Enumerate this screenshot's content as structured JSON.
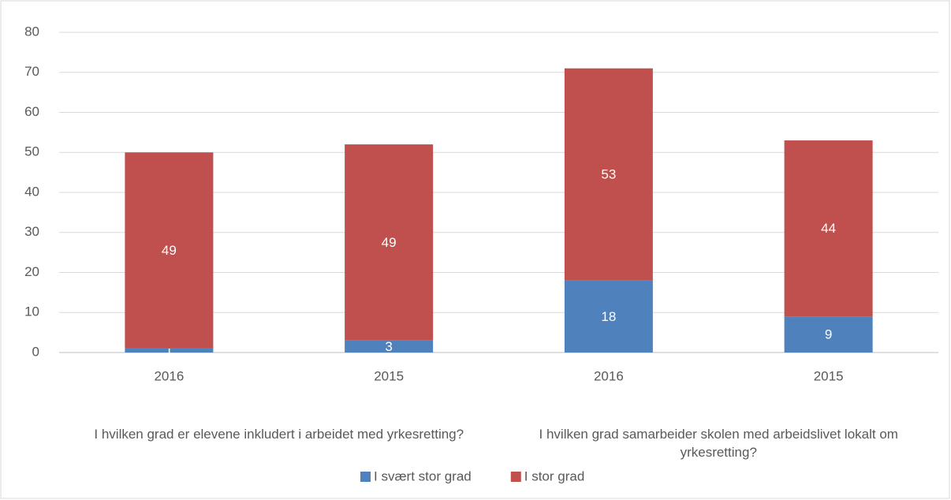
{
  "chart_data": {
    "type": "stacked_bar",
    "groups": [
      {
        "name": "I hvilken grad er elevene inkludert i arbeidet med yrkesretting?",
        "categories": [
          "2016",
          "2015"
        ]
      },
      {
        "name": "I hvilken grad samarbeider skolen med arbeidslivet lokalt om yrkesretting?",
        "categories": [
          "2016",
          "2015"
        ]
      }
    ],
    "series": [
      {
        "name": "I svært stor grad",
        "color": "#4f81bd",
        "values": [
          1,
          3,
          18,
          9
        ]
      },
      {
        "name": "I stor grad",
        "color": "#c0504d",
        "values": [
          49,
          49,
          53,
          44
        ]
      }
    ],
    "ylim": [
      0,
      80
    ],
    "yticks": [
      0,
      10,
      20,
      30,
      40,
      50,
      60,
      70,
      80
    ],
    "grid": true,
    "legend": "bottom"
  }
}
